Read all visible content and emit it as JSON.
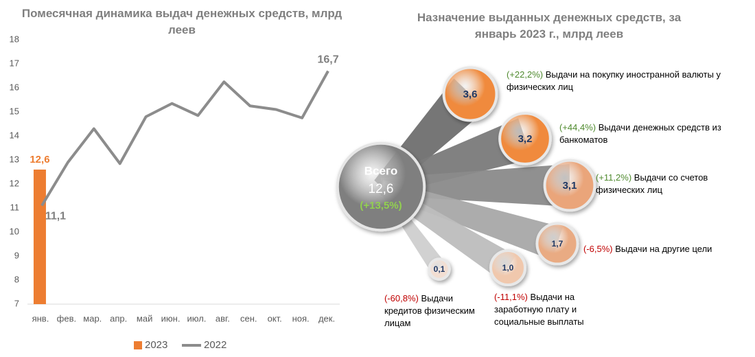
{
  "chart_data": [
    {
      "type": "bar-line",
      "title": "Помесячная динамика выдач денежных средств, млрд леев",
      "categories": [
        "янв.",
        "фев.",
        "мар.",
        "апр.",
        "май",
        "июн.",
        "июл.",
        "авг.",
        "сен.",
        "окт.",
        "ноя.",
        "дек."
      ],
      "series": [
        {
          "name": "2023",
          "type": "bar",
          "color": "#ed7d31",
          "values": [
            12.6,
            null,
            null,
            null,
            null,
            null,
            null,
            null,
            null,
            null,
            null,
            null
          ],
          "value_labels": [
            "12,6",
            null,
            null,
            null,
            null,
            null,
            null,
            null,
            null,
            null,
            null,
            null
          ]
        },
        {
          "name": "2022",
          "type": "line",
          "color": "#8c8c8c",
          "values": [
            11.1,
            12.9,
            14.3,
            12.85,
            14.8,
            15.35,
            14.85,
            16.25,
            15.25,
            15.1,
            14.75,
            16.7
          ],
          "value_labels": [
            "11,1",
            null,
            null,
            null,
            null,
            null,
            null,
            null,
            null,
            null,
            null,
            "16,7"
          ]
        }
      ],
      "ylim": [
        7,
        18
      ],
      "yticks": [
        7,
        8,
        9,
        10,
        11,
        12,
        13,
        14,
        15,
        16,
        17,
        18
      ],
      "legend": "bottom"
    },
    {
      "type": "bubble",
      "title": "Назначение выданных денежных средств, за январь 2023 г., млрд леев",
      "total": {
        "label": "Всего",
        "value": 12.6,
        "value_label": "12,6",
        "change": 13.5,
        "change_label": "(+13,5%)",
        "color": "#7f7f7f"
      },
      "items": [
        {
          "name": "Выдачи на покупку иностранной валюты у физических лиц",
          "value": 3.6,
          "value_label": "3,6",
          "change": 22.2,
          "change_label": "(+22,2%)",
          "color": "#f08a3c"
        },
        {
          "name": "Выдачи денежных средств из банкоматов",
          "value": 3.2,
          "value_label": "3,2",
          "change": 44.4,
          "change_label": "(+44,4%)",
          "color": "#f08a3c"
        },
        {
          "name": "Выдачи со счетов физических лиц",
          "value": 3.1,
          "value_label": "3,1",
          "change": 11.2,
          "change_label": "(+11,2%)",
          "color": "#eaa57a"
        },
        {
          "name": "Выдачи на другие цели",
          "value": 1.7,
          "value_label": "1,7",
          "change": -6.5,
          "change_label": "(-6,5%)",
          "color": "#e9ab83"
        },
        {
          "name": "Выдачи на заработную плату и социальные выплаты",
          "value": 1.0,
          "value_label": "1,0",
          "change": -11.1,
          "change_label": "(-11,1%)",
          "color": "#f0c8ad"
        },
        {
          "name": "Выдачи кредитов физическим лицам",
          "value": 0.1,
          "value_label": "0,1",
          "change": -60.8,
          "change_label": "(-60,8%)",
          "color": "#f2ded2"
        }
      ]
    }
  ]
}
